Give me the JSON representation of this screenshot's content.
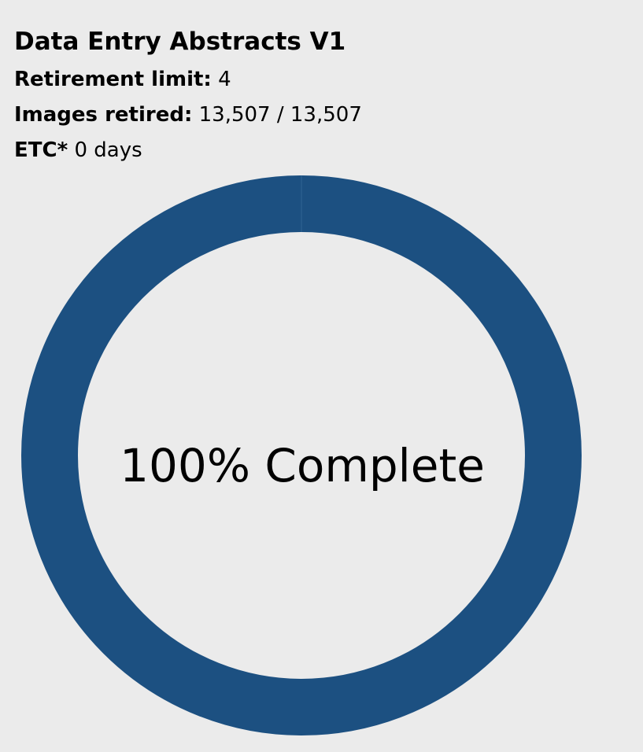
{
  "project": {
    "title": "Data Entry Abstracts V1"
  },
  "stats": {
    "retirement_limit_label": "Retirement limit:",
    "retirement_limit_value": "4",
    "images_retired_label": "Images retired:",
    "images_retired_value": "13,507 / 13,507",
    "etc_label": "ETC*",
    "etc_value": "0 days"
  },
  "progress": {
    "fraction": 1.0,
    "label": "100% Complete",
    "color": "#1c5081",
    "track_color": "#ebebeb"
  }
}
